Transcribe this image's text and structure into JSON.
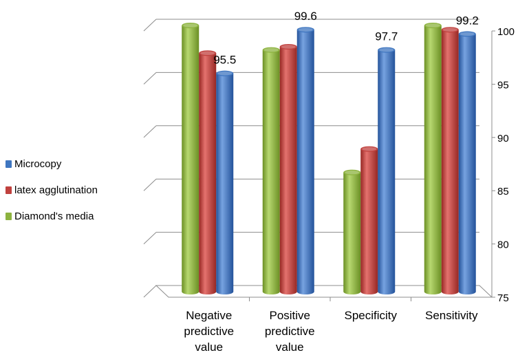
{
  "chart_data": {
    "type": "bar",
    "categories": [
      [
        "Negative",
        "predictive",
        "value"
      ],
      [
        "Positive",
        "predictive",
        "value"
      ],
      [
        "Specificity"
      ],
      [
        "Sensitivity"
      ]
    ],
    "series": [
      {
        "name": "Diamond's media",
        "color": "#8db33f",
        "values": [
          100,
          97.7,
          86.2,
          100
        ]
      },
      {
        "name": "latex agglutination",
        "color": "#c0413e",
        "values": [
          97.4,
          98.0,
          88.4,
          99.6
        ]
      },
      {
        "name": "Microcopy",
        "color": "#3f76c0",
        "values": [
          95.5,
          99.6,
          97.7,
          99.2
        ]
      }
    ],
    "data_labels": [
      {
        "category": 0,
        "series": 2,
        "text": "95.5"
      },
      {
        "category": 1,
        "series": 2,
        "text": "99.6"
      },
      {
        "category": 2,
        "series": 2,
        "text": "97.7"
      },
      {
        "category": 3,
        "series": 2,
        "text": "99.2"
      }
    ],
    "yticks": [
      "75",
      "80",
      "85",
      "90",
      "95",
      "100"
    ],
    "ylim": [
      75,
      100
    ],
    "y_axis_position": "right",
    "grid": true,
    "legend": {
      "position": "left",
      "items": [
        "Microcopy",
        "latex agglutination",
        "Diamond's media"
      ],
      "colors": [
        "#3f76c0",
        "#c0413e",
        "#8db33f"
      ]
    }
  }
}
